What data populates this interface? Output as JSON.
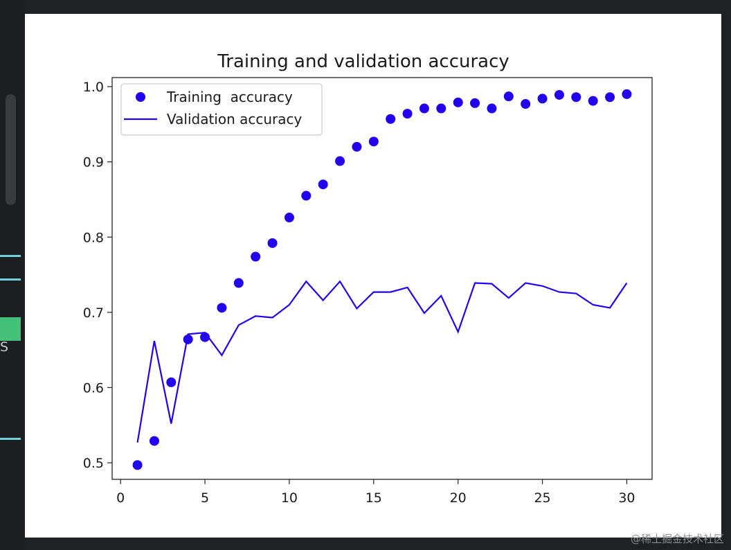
{
  "editor": {
    "side_letter": "S",
    "watermark": "@稀土掘金技术社区"
  },
  "chart_data": {
    "type": "scatter",
    "title": "Training and validation accuracy",
    "xlabel": "",
    "ylabel": "",
    "xlim": [
      -0.5,
      31.5
    ],
    "ylim": [
      0.478,
      1.012
    ],
    "x_ticks": [
      0,
      5,
      10,
      15,
      20,
      25,
      30
    ],
    "y_ticks": [
      0.5,
      0.6,
      0.7,
      0.8,
      0.9,
      1.0
    ],
    "x_tick_labels": [
      "0",
      "5",
      "10",
      "15",
      "20",
      "25",
      "30"
    ],
    "y_tick_labels": [
      "0.5",
      "0.6",
      "0.7",
      "0.8",
      "0.9",
      "1.0"
    ],
    "grid": false,
    "legend_position": "upper-left",
    "series": [
      {
        "name": "Training  accuracy",
        "style": "points",
        "color": "#2200ee",
        "x": [
          1,
          2,
          3,
          4,
          5,
          6,
          7,
          8,
          9,
          10,
          11,
          12,
          13,
          14,
          15,
          16,
          17,
          18,
          19,
          20,
          21,
          22,
          23,
          24,
          25,
          26,
          27,
          28,
          29,
          30
        ],
        "values": [
          0.497,
          0.529,
          0.607,
          0.664,
          0.667,
          0.706,
          0.739,
          0.774,
          0.792,
          0.826,
          0.855,
          0.87,
          0.901,
          0.92,
          0.927,
          0.957,
          0.964,
          0.971,
          0.971,
          0.979,
          0.978,
          0.971,
          0.987,
          0.977,
          0.984,
          0.989,
          0.986,
          0.981,
          0.986,
          0.99
        ]
      },
      {
        "name": "Validation accuracy",
        "style": "line",
        "color": "#2200ee",
        "x": [
          1,
          2,
          3,
          4,
          5,
          6,
          7,
          8,
          9,
          10,
          11,
          12,
          13,
          14,
          15,
          16,
          17,
          18,
          19,
          20,
          21,
          22,
          23,
          24,
          25,
          26,
          27,
          28,
          29,
          30
        ],
        "values": [
          0.527,
          0.662,
          0.552,
          0.671,
          0.673,
          0.643,
          0.683,
          0.695,
          0.693,
          0.71,
          0.741,
          0.716,
          0.741,
          0.705,
          0.727,
          0.727,
          0.733,
          0.699,
          0.722,
          0.674,
          0.739,
          0.738,
          0.719,
          0.739,
          0.735,
          0.727,
          0.725,
          0.71,
          0.706,
          0.739
        ]
      }
    ]
  }
}
